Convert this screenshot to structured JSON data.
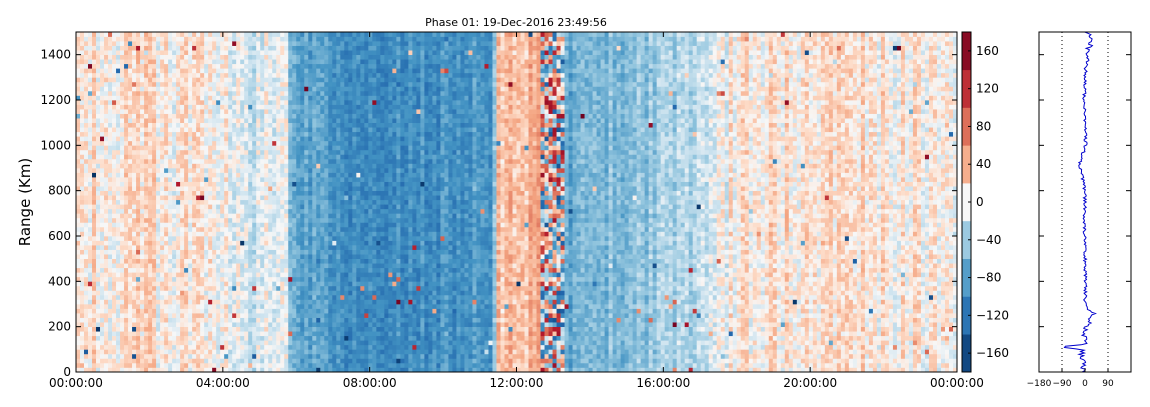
{
  "chart_data": [
    {
      "type": "heatmap",
      "title": "Phase 01: 19-Dec-2016 23:49:56",
      "xlabel": "",
      "ylabel": "Range (Km)",
      "x_ticks": [
        "00:00:00",
        "04:00:00",
        "08:00:00",
        "12:00:00",
        "16:00:00",
        "20:00:00",
        "00:00:00"
      ],
      "x_tick_hours": [
        0,
        4,
        8,
        12,
        16,
        20,
        24
      ],
      "xlim_hours": [
        0,
        24
      ],
      "y_ticks": [
        "0",
        "200",
        "400",
        "600",
        "800",
        "1000",
        "1200",
        "1400"
      ],
      "y_tick_values": [
        0,
        200,
        400,
        600,
        800,
        1000,
        1200,
        1400
      ],
      "ylim": [
        0,
        1500
      ],
      "colormap": "RdBu_r",
      "value_range": [
        -180,
        180
      ],
      "time_profile": [
        {
          "hour": 0,
          "phase": 8
        },
        {
          "hour": 1,
          "phase": 12
        },
        {
          "hour": 2,
          "phase": 10
        },
        {
          "hour": 3,
          "phase": 5
        },
        {
          "hour": 4,
          "phase": 0
        },
        {
          "hour": 5,
          "phase": -20
        },
        {
          "hour": 5.7,
          "phase": 10
        },
        {
          "hour": 5.9,
          "phase": -70
        },
        {
          "hour": 7,
          "phase": -85
        },
        {
          "hour": 8.5,
          "phase": -100
        },
        {
          "hour": 10,
          "phase": -90
        },
        {
          "hour": 11.3,
          "phase": -85
        },
        {
          "hour": 11.5,
          "phase": 25
        },
        {
          "hour": 12.6,
          "phase": 40
        },
        {
          "hour": 12.8,
          "phase": 60
        },
        {
          "hour": 13.1,
          "phase": -80
        },
        {
          "hour": 14,
          "phase": -60
        },
        {
          "hour": 15,
          "phase": -50
        },
        {
          "hour": 16,
          "phase": -40
        },
        {
          "hour": 17,
          "phase": -30
        },
        {
          "hour": 18,
          "phase": 10
        },
        {
          "hour": 20,
          "phase": 15
        },
        {
          "hour": 22,
          "phase": 10
        },
        {
          "hour": 24,
          "phase": 5
        }
      ]
    },
    {
      "type": "colorbar",
      "ticks": [
        "−160",
        "−120",
        "−80",
        "−40",
        "0",
        "40",
        "80",
        "120",
        "160"
      ],
      "tick_values": [
        -160,
        -120,
        -80,
        -40,
        0,
        40,
        80,
        120,
        160
      ],
      "range": [
        -180,
        180
      ]
    },
    {
      "type": "line",
      "x_ticks": [
        "−180",
        "−90",
        "0",
        "90"
      ],
      "x_tick_values": [
        -180,
        -90,
        0,
        90
      ],
      "xlim": [
        -180,
        180
      ],
      "ylim": [
        0,
        1500
      ],
      "reference_lines": [
        -90,
        90
      ],
      "line_color": "#0000cc",
      "profile": [
        {
          "range": 0,
          "phase": -5
        },
        {
          "range": 100,
          "phase": -15
        },
        {
          "range": 110,
          "phase": -110
        },
        {
          "range": 120,
          "phase": -5
        },
        {
          "range": 200,
          "phase": 5
        },
        {
          "range": 265,
          "phase": 35
        },
        {
          "range": 280,
          "phase": 0
        },
        {
          "range": 400,
          "phase": 2
        },
        {
          "range": 600,
          "phase": -2
        },
        {
          "range": 800,
          "phase": 0
        },
        {
          "range": 920,
          "phase": -20
        },
        {
          "range": 1000,
          "phase": 3
        },
        {
          "range": 1200,
          "phase": -3
        },
        {
          "range": 1400,
          "phase": 5
        },
        {
          "range": 1470,
          "phase": 30
        },
        {
          "range": 1500,
          "phase": 0
        }
      ]
    }
  ]
}
